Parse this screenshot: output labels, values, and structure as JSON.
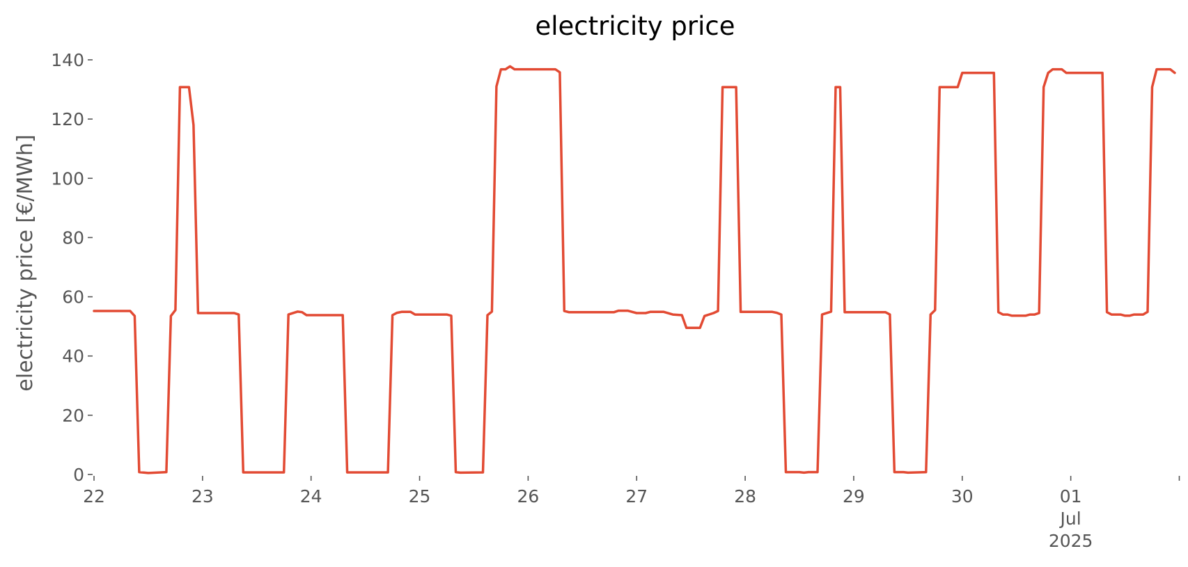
{
  "chart_data": {
    "type": "line",
    "title": "electricity price",
    "xlabel": "",
    "ylabel": "electricity price [€/MWh]",
    "grid": false,
    "legend": "none",
    "xlim": [
      "2025-06-22 00:00",
      "2025-07-01 23:00"
    ],
    "ylim": [
      0,
      140
    ],
    "y_ticks": [
      0,
      20,
      40,
      60,
      80,
      100,
      120,
      140
    ],
    "x_ticks": [
      {
        "at": "2025-06-22 00:00",
        "label": "22"
      },
      {
        "at": "2025-06-23 00:00",
        "label": "23"
      },
      {
        "at": "2025-06-24 00:00",
        "label": "24"
      },
      {
        "at": "2025-06-25 00:00",
        "label": "25"
      },
      {
        "at": "2025-06-26 00:00",
        "label": "26"
      },
      {
        "at": "2025-06-27 00:00",
        "label": "27"
      },
      {
        "at": "2025-06-28 00:00",
        "label": "28"
      },
      {
        "at": "2025-06-29 00:00",
        "label": "29"
      },
      {
        "at": "2025-06-30 00:00",
        "label": "30"
      },
      {
        "at": "2025-07-01 00:00",
        "label": "01\nJul\n2025"
      },
      {
        "at": "2025-07-02 00:00",
        "label": ""
      }
    ],
    "series": [
      {
        "color": "#e24a33",
        "points": [
          [
            "2025-06-22 00:00",
            55.2
          ],
          [
            "2025-06-22 08:00",
            55.2
          ],
          [
            "2025-06-22 09:00",
            53.5
          ],
          [
            "2025-06-22 10:00",
            0.8
          ],
          [
            "2025-06-22 12:00",
            0.5
          ],
          [
            "2025-06-22 16:00",
            0.8
          ],
          [
            "2025-06-22 17:00",
            53.5
          ],
          [
            "2025-06-22 18:00",
            55.5
          ],
          [
            "2025-06-22 19:00",
            130.8
          ],
          [
            "2025-06-22 21:00",
            130.8
          ],
          [
            "2025-06-22 22:00",
            118.0
          ],
          [
            "2025-06-22 23:00",
            54.5
          ],
          [
            "2025-06-23 07:00",
            54.5
          ],
          [
            "2025-06-23 08:00",
            54.0
          ],
          [
            "2025-06-23 09:00",
            0.7
          ],
          [
            "2025-06-23 18:00",
            0.7
          ],
          [
            "2025-06-23 19:00",
            54.0
          ],
          [
            "2025-06-23 21:00",
            55.0
          ],
          [
            "2025-06-23 22:00",
            54.8
          ],
          [
            "2025-06-23 23:00",
            53.8
          ],
          [
            "2025-06-24 07:00",
            53.8
          ],
          [
            "2025-06-24 08:00",
            0.7
          ],
          [
            "2025-06-24 17:00",
            0.7
          ],
          [
            "2025-06-24 18:00",
            53.8
          ],
          [
            "2025-06-24 19:00",
            54.6
          ],
          [
            "2025-06-24 20:00",
            54.9
          ],
          [
            "2025-06-24 22:00",
            54.9
          ],
          [
            "2025-06-24 23:00",
            54.0
          ],
          [
            "2025-06-25 06:00",
            54.0
          ],
          [
            "2025-06-25 07:00",
            53.6
          ],
          [
            "2025-06-25 08:00",
            0.8
          ],
          [
            "2025-06-25 09:00",
            0.6
          ],
          [
            "2025-06-25 14:00",
            0.7
          ],
          [
            "2025-06-25 15:00",
            53.8
          ],
          [
            "2025-06-25 16:00",
            55.0
          ],
          [
            "2025-06-25 17:00",
            131.0
          ],
          [
            "2025-06-25 18:00",
            136.8
          ],
          [
            "2025-06-25 19:00",
            136.8
          ],
          [
            "2025-06-25 20:00",
            137.8
          ],
          [
            "2025-06-25 21:00",
            136.8
          ],
          [
            "2025-06-26 06:00",
            136.8
          ],
          [
            "2025-06-26 07:00",
            135.8
          ],
          [
            "2025-06-26 08:00",
            55.2
          ],
          [
            "2025-06-26 09:00",
            54.8
          ],
          [
            "2025-06-26 19:00",
            54.8
          ],
          [
            "2025-06-26 20:00",
            55.3
          ],
          [
            "2025-06-26 22:00",
            55.3
          ],
          [
            "2025-06-26 23:00",
            54.9
          ],
          [
            "2025-06-27 00:00",
            54.5
          ],
          [
            "2025-06-27 02:00",
            54.5
          ],
          [
            "2025-06-27 03:00",
            54.9
          ],
          [
            "2025-06-27 06:00",
            54.9
          ],
          [
            "2025-06-27 08:00",
            54.0
          ],
          [
            "2025-06-27 10:00",
            53.8
          ],
          [
            "2025-06-27 11:00",
            49.5
          ],
          [
            "2025-06-27 14:00",
            49.5
          ],
          [
            "2025-06-27 15:00",
            53.5
          ],
          [
            "2025-06-27 17:00",
            54.5
          ],
          [
            "2025-06-27 18:00",
            55.2
          ],
          [
            "2025-06-27 19:00",
            130.8
          ],
          [
            "2025-06-27 22:00",
            130.8
          ],
          [
            "2025-06-27 23:00",
            54.9
          ],
          [
            "2025-06-28 06:00",
            54.9
          ],
          [
            "2025-06-28 07:00",
            54.6
          ],
          [
            "2025-06-28 08:00",
            54.0
          ],
          [
            "2025-06-28 09:00",
            0.8
          ],
          [
            "2025-06-28 12:00",
            0.8
          ],
          [
            "2025-06-28 13:00",
            0.6
          ],
          [
            "2025-06-28 14:00",
            0.8
          ],
          [
            "2025-06-28 16:00",
            0.8
          ],
          [
            "2025-06-28 17:00",
            54.0
          ],
          [
            "2025-06-28 19:00",
            55.0
          ],
          [
            "2025-06-28 20:00",
            130.8
          ],
          [
            "2025-06-28 21:00",
            130.8
          ],
          [
            "2025-06-28 22:00",
            54.8
          ],
          [
            "2025-06-29 07:00",
            54.8
          ],
          [
            "2025-06-29 08:00",
            54.0
          ],
          [
            "2025-06-29 09:00",
            0.8
          ],
          [
            "2025-06-29 11:00",
            0.8
          ],
          [
            "2025-06-29 12:00",
            0.6
          ],
          [
            "2025-06-29 16:00",
            0.8
          ],
          [
            "2025-06-29 17:00",
            54.0
          ],
          [
            "2025-06-29 18:00",
            55.5
          ],
          [
            "2025-06-29 19:00",
            130.8
          ],
          [
            "2025-06-29 23:00",
            130.8
          ],
          [
            "2025-06-30 00:00",
            135.6
          ],
          [
            "2025-06-30 07:00",
            135.6
          ],
          [
            "2025-06-30 08:00",
            54.8
          ],
          [
            "2025-06-30 09:00",
            54.0
          ],
          [
            "2025-06-30 10:00",
            54.0
          ],
          [
            "2025-06-30 11:00",
            53.6
          ],
          [
            "2025-06-30 14:00",
            53.6
          ],
          [
            "2025-06-30 15:00",
            54.0
          ],
          [
            "2025-06-30 16:00",
            54.0
          ],
          [
            "2025-06-30 17:00",
            54.5
          ],
          [
            "2025-06-30 18:00",
            130.8
          ],
          [
            "2025-06-30 19:00",
            135.6
          ],
          [
            "2025-06-30 20:00",
            136.8
          ],
          [
            "2025-06-30 22:00",
            136.8
          ],
          [
            "2025-06-30 23:00",
            135.6
          ],
          [
            "2025-07-01 07:00",
            135.6
          ],
          [
            "2025-07-01 08:00",
            54.8
          ],
          [
            "2025-07-01 09:00",
            54.0
          ],
          [
            "2025-07-01 11:00",
            54.0
          ],
          [
            "2025-07-01 12:00",
            53.6
          ],
          [
            "2025-07-01 13:00",
            53.6
          ],
          [
            "2025-07-01 14:00",
            54.0
          ],
          [
            "2025-07-01 16:00",
            54.0
          ],
          [
            "2025-07-01 17:00",
            54.9
          ],
          [
            "2025-07-01 18:00",
            130.8
          ],
          [
            "2025-07-01 19:00",
            136.8
          ],
          [
            "2025-07-01 22:00",
            136.8
          ],
          [
            "2025-07-01 23:00",
            135.6
          ]
        ]
      }
    ]
  }
}
